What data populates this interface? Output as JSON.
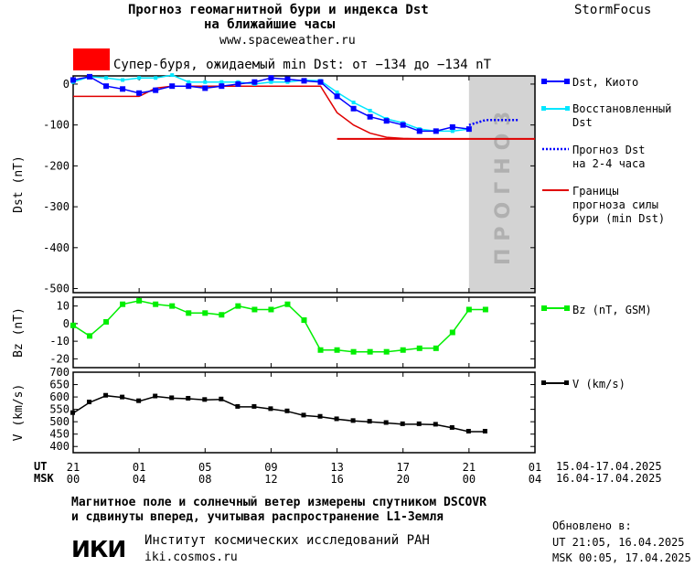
{
  "header": {
    "title_line1": "Прогноз геомагнитной бури и индекса Dst",
    "title_line2": "на ближайшие часы",
    "url": "www.spaceweather.ru",
    "brand": "StormFocus"
  },
  "storm_banner": {
    "text": "Супер-буря, ожидаемый min Dst: от −134 до −134 nT",
    "color": "#ff0000"
  },
  "forecast_label": "ПРОГНОЗ",
  "colors": {
    "dst_kyoto": "#0000ff",
    "dst_restored": "#00e6ff",
    "dst_forecast": "#0000ff",
    "storm_bounds": "#e00000",
    "bz": "#00ee00",
    "v": "#000000",
    "forecast_zone": "#d3d3d3"
  },
  "legend": {
    "dst_kyoto": "Dst, Киото",
    "dst_restored_1": "Восстановленный",
    "dst_restored_2": "Dst",
    "forecast_1": "Прогноз Dst",
    "forecast_2": "на 2-4 часа",
    "bounds_1": "Границы",
    "bounds_2": "прогноза силы",
    "bounds_3": "бури (min Dst)",
    "bz": "Bz (nT, GSM)",
    "v": "V (km/s)"
  },
  "axes": {
    "dst_ylabel": "Dst (nT)",
    "bz_ylabel": "Bz (nT)",
    "v_ylabel": "V (km/s)",
    "ut_label": "UT",
    "msk_label": "MSK",
    "ut_range": "15.04-17.04.2025",
    "msk_range": "16.04-17.04.2025"
  },
  "footer": {
    "note_line1": "Магнитное поле и солнечный ветер измерены спутником DSCOVR",
    "note_line2": "и сдвинуты вперед, учитывая распространение L1-Земля",
    "logo": "ИКИ",
    "institute": "Институт космических исследований РАН",
    "site": "iki.cosmos.ru",
    "updated_label": "Обновлено в:",
    "updated_ut": "UT   21:05, 16.04.2025",
    "updated_msk": "MSK 00:05, 17.04.2025"
  },
  "chart_data": [
    {
      "type": "line",
      "panel": "dst",
      "xlabel": "",
      "ylabel": "Dst (nT)",
      "ylim": [
        -510,
        20
      ],
      "yticks": [
        0,
        -100,
        -200,
        -300,
        -400,
        -500
      ],
      "x_hours_ut_start": "21",
      "xlim": [
        0,
        28
      ],
      "forecast_zone": [
        24,
        28
      ],
      "series": [
        {
          "name": "Dst, Киото",
          "x": [
            0,
            1,
            2,
            3,
            4,
            5,
            6,
            7,
            8,
            9,
            10,
            11,
            12,
            13,
            14,
            15,
            16,
            17,
            18,
            19,
            20,
            21,
            22,
            23,
            24
          ],
          "values": [
            10,
            18,
            -5,
            -12,
            -22,
            -15,
            -5,
            -5,
            -10,
            -5,
            0,
            5,
            15,
            12,
            8,
            5,
            -30,
            -60,
            -80,
            -90,
            -100,
            -115,
            -115,
            -105,
            -110
          ]
        },
        {
          "name": "Восстановленный Dst",
          "x": [
            0,
            1,
            2,
            3,
            4,
            5,
            6,
            7,
            8,
            9,
            10,
            11,
            12,
            13,
            14,
            15,
            16,
            17,
            18,
            19,
            20,
            21,
            22,
            23,
            24
          ],
          "values": [
            5,
            18,
            15,
            10,
            15,
            15,
            22,
            5,
            5,
            5,
            5,
            0,
            5,
            5,
            10,
            8,
            -20,
            -45,
            -65,
            -85,
            -95,
            -110,
            -115,
            -115,
            -110
          ]
        },
        {
          "name": "Прогноз Dst на 2-4 часа",
          "x": [
            24,
            25,
            26,
            27
          ],
          "values": [
            -100,
            -88,
            -88,
            -88
          ]
        },
        {
          "name": "Границы прогноза силы бури (min Dst)",
          "x": [
            0,
            4,
            5,
            6,
            7,
            15,
            16,
            17,
            18,
            19,
            20,
            21,
            22
          ],
          "values": [
            -30,
            -30,
            -10,
            -5,
            -5,
            -5,
            -70,
            -100,
            -120,
            -130,
            -133,
            -134,
            -134
          ]
        },
        {
          "name": "Границы прогноза силы бури (min Dst)",
          "x": [
            16,
            28
          ],
          "values": [
            -134,
            -134
          ]
        }
      ]
    },
    {
      "type": "line",
      "panel": "bz",
      "ylabel": "Bz (nT)",
      "ylim": [
        -25,
        15
      ],
      "yticks": [
        10,
        0,
        -10,
        -20
      ],
      "legend": "Bz (nT, GSM)",
      "series": [
        {
          "name": "Bz (nT, GSM)",
          "x": [
            0,
            1,
            2,
            3,
            4,
            5,
            6,
            7,
            8,
            9,
            10,
            11,
            12,
            13,
            14,
            15,
            16,
            17,
            18,
            19,
            20,
            21,
            22,
            23,
            24,
            25
          ],
          "values": [
            -1,
            -7,
            1,
            11,
            13,
            11,
            10,
            6,
            6,
            5,
            10,
            8,
            8,
            11,
            2,
            -15,
            -15,
            -16,
            -16,
            -16,
            -15,
            -14,
            -14,
            -5,
            8,
            8
          ]
        }
      ]
    },
    {
      "type": "line",
      "panel": "v",
      "ylabel": "V (km/s)",
      "xlabel": "",
      "ylim": [
        375,
        700
      ],
      "yticks": [
        700,
        650,
        600,
        550,
        500,
        450,
        400
      ],
      "legend": "V (km/s)",
      "series": [
        {
          "name": "V (km/s)",
          "x": [
            0,
            1,
            2,
            3,
            4,
            5,
            6,
            7,
            8,
            9,
            10,
            11,
            12,
            13,
            14,
            15,
            16,
            17,
            18,
            19,
            20,
            21,
            22,
            23,
            24,
            25
          ],
          "values": [
            535,
            578,
            605,
            598,
            583,
            602,
            595,
            593,
            588,
            590,
            560,
            560,
            551,
            542,
            525,
            520,
            510,
            503,
            500,
            495,
            490,
            490,
            488,
            475,
            460,
            460
          ]
        }
      ]
    }
  ],
  "ticks": {
    "ut": [
      "21",
      "01",
      "05",
      "09",
      "13",
      "17",
      "21",
      "01"
    ],
    "msk": [
      "00",
      "04",
      "08",
      "12",
      "16",
      "20",
      "00",
      "04"
    ]
  }
}
